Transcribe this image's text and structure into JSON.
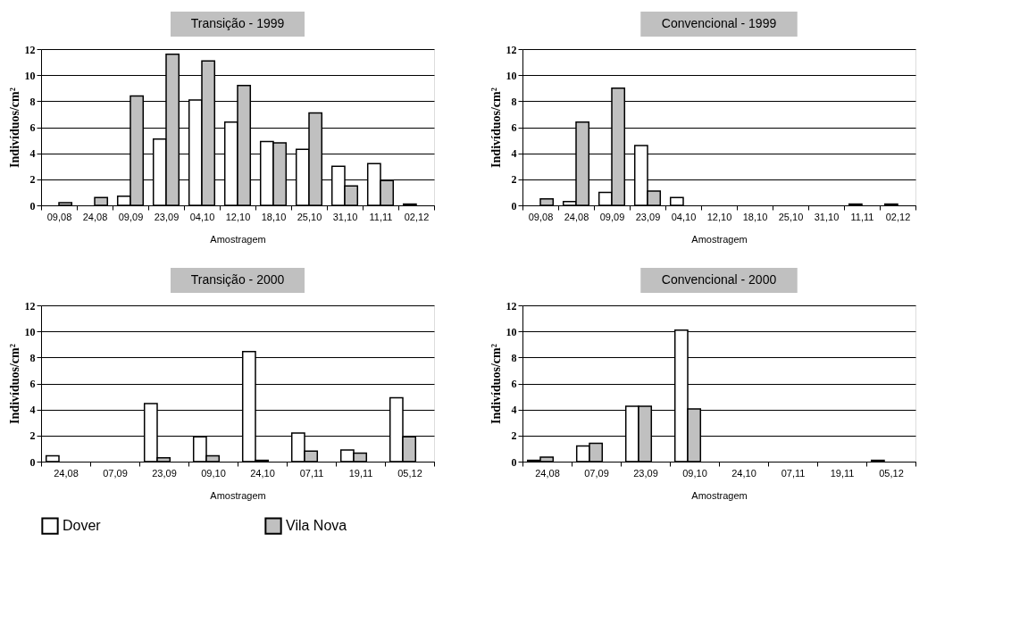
{
  "chart_data": [
    {
      "type": "bar",
      "title": "Transição - 1999",
      "xlabel": "Amostragem",
      "ylabel": "Indivíduos/cm²",
      "categories": [
        "09,08",
        "24,08",
        "09,09",
        "23,09",
        "04,10",
        "12,10",
        "18,10",
        "25,10",
        "31,10",
        "11,11",
        "02,12"
      ],
      "series": [
        {
          "name": "Dover",
          "color": "#ffffff",
          "values": [
            null,
            null,
            0.7,
            5.1,
            8.1,
            6.4,
            4.9,
            4.3,
            3.0,
            3.2,
            0.1
          ]
        },
        {
          "name": "Vila Nova",
          "color": "#c0c0c0",
          "values": [
            0.2,
            0.6,
            8.4,
            11.6,
            11.1,
            9.2,
            4.8,
            7.1,
            1.5,
            1.9,
            null
          ]
        }
      ],
      "ylim": [
        0,
        12
      ],
      "yticks": [
        0,
        2,
        4,
        6,
        8,
        10,
        12
      ],
      "grid": "y",
      "legend": "bottom"
    },
    {
      "type": "bar",
      "title": "Convencional - 1999",
      "xlabel": "Amostragem",
      "ylabel": "Indivíduos/cm²",
      "categories": [
        "09,08",
        "24,08",
        "09,09",
        "23,09",
        "04,10",
        "12,10",
        "18,10",
        "25,10",
        "31,10",
        "11,11",
        "02,12"
      ],
      "series": [
        {
          "name": "Dover",
          "color": "#ffffff",
          "values": [
            null,
            0.3,
            1.0,
            4.6,
            0.6,
            null,
            null,
            null,
            null,
            0.1,
            0.1
          ]
        },
        {
          "name": "Vila Nova",
          "color": "#c0c0c0",
          "values": [
            0.5,
            6.4,
            9.0,
            1.1,
            null,
            null,
            null,
            null,
            null,
            null,
            null
          ]
        }
      ],
      "ylim": [
        0,
        12
      ],
      "yticks": [
        0,
        2,
        4,
        6,
        8,
        10,
        12
      ],
      "grid": "y",
      "legend": "bottom"
    },
    {
      "type": "bar",
      "title": "Transição - 2000",
      "xlabel": "Amostragem",
      "ylabel": "Indivíduos/cm²",
      "categories": [
        "24,08",
        "07,09",
        "23,09",
        "09,10",
        "24,10",
        "07,11",
        "19,11",
        "05,12"
      ],
      "series": [
        {
          "name": "Dover",
          "color": "#ffffff",
          "values": [
            0.45,
            null,
            4.45,
            1.9,
            8.45,
            2.2,
            0.9,
            4.9
          ]
        },
        {
          "name": "Vila Nova",
          "color": "#c0c0c0",
          "values": [
            null,
            null,
            0.3,
            0.45,
            0.1,
            0.8,
            0.65,
            1.9
          ]
        }
      ],
      "ylim": [
        0,
        12
      ],
      "yticks": [
        0,
        2,
        4,
        6,
        8,
        10,
        12
      ],
      "grid": "y",
      "legend": "bottom"
    },
    {
      "type": "bar",
      "title": "Convencional - 2000",
      "xlabel": "Amostragem",
      "ylabel": "Indivíduos/cm²",
      "categories": [
        "24,08",
        "07,09",
        "23,09",
        "09,10",
        "24,10",
        "07,11",
        "19,11",
        "05,12"
      ],
      "series": [
        {
          "name": "Dover",
          "color": "#ffffff",
          "values": [
            0.1,
            1.2,
            4.25,
            10.1,
            null,
            null,
            null,
            0.1
          ]
        },
        {
          "name": "Vila Nova",
          "color": "#c0c0c0",
          "values": [
            0.35,
            1.4,
            4.25,
            4.05,
            null,
            null,
            null,
            null
          ]
        }
      ],
      "ylim": [
        0,
        12
      ],
      "yticks": [
        0,
        2,
        4,
        6,
        8,
        10,
        12
      ],
      "grid": "y",
      "legend": "bottom"
    }
  ]
}
